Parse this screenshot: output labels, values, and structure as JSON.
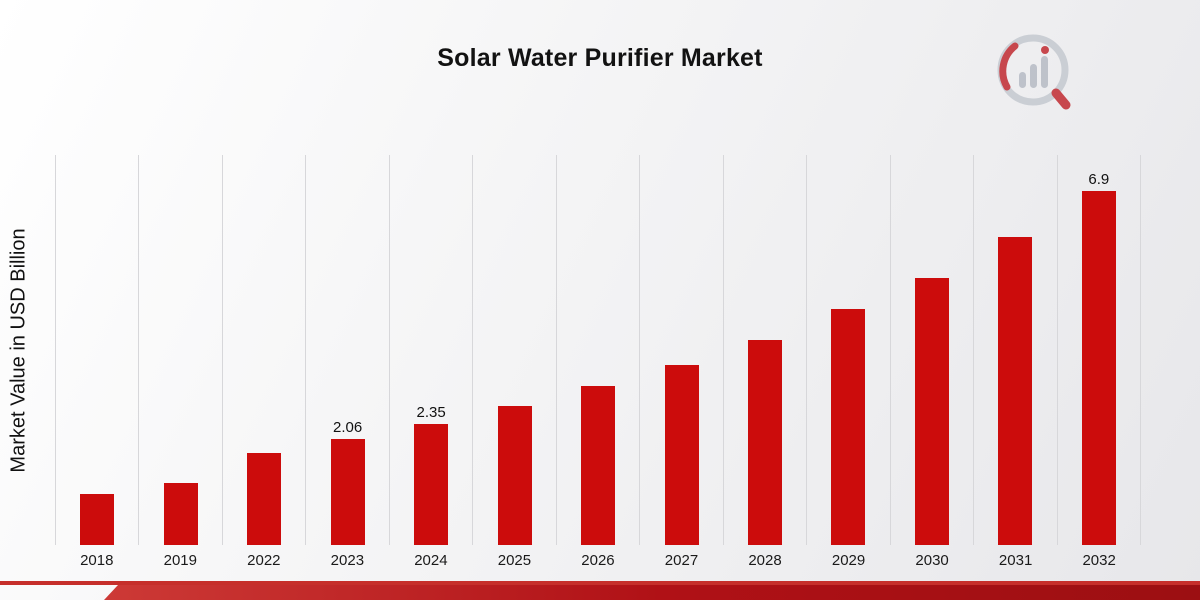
{
  "header": {
    "title": "Solar Water Purifier Market"
  },
  "chart_data": {
    "type": "bar",
    "title": "Solar Water Purifier Market",
    "xlabel": "",
    "ylabel": "Market Value in USD Billion",
    "categories": [
      "2018",
      "2019",
      "2022",
      "2023",
      "2024",
      "2025",
      "2026",
      "2027",
      "2028",
      "2029",
      "2030",
      "2031",
      "2032"
    ],
    "values": [
      1.0,
      1.2,
      1.8,
      2.06,
      2.35,
      2.7,
      3.1,
      3.5,
      4.0,
      4.6,
      5.2,
      6.0,
      6.9
    ],
    "data_labels": [
      "",
      "",
      "",
      "2.06",
      "2.35",
      "",
      "",
      "",
      "",
      "",
      "",
      "",
      "6.9"
    ],
    "bar_color": "#cc0c0c",
    "ylim": [
      0,
      7.6
    ],
    "grid": "vertical",
    "legend": "none"
  },
  "colors": {
    "bar": "#cc0c0c",
    "gridline": "#d7d7da",
    "footer_band": "#b01116",
    "footer_line": "#c62f2b",
    "background_start": "#ffffff",
    "background_end": "#e7e7ea"
  }
}
